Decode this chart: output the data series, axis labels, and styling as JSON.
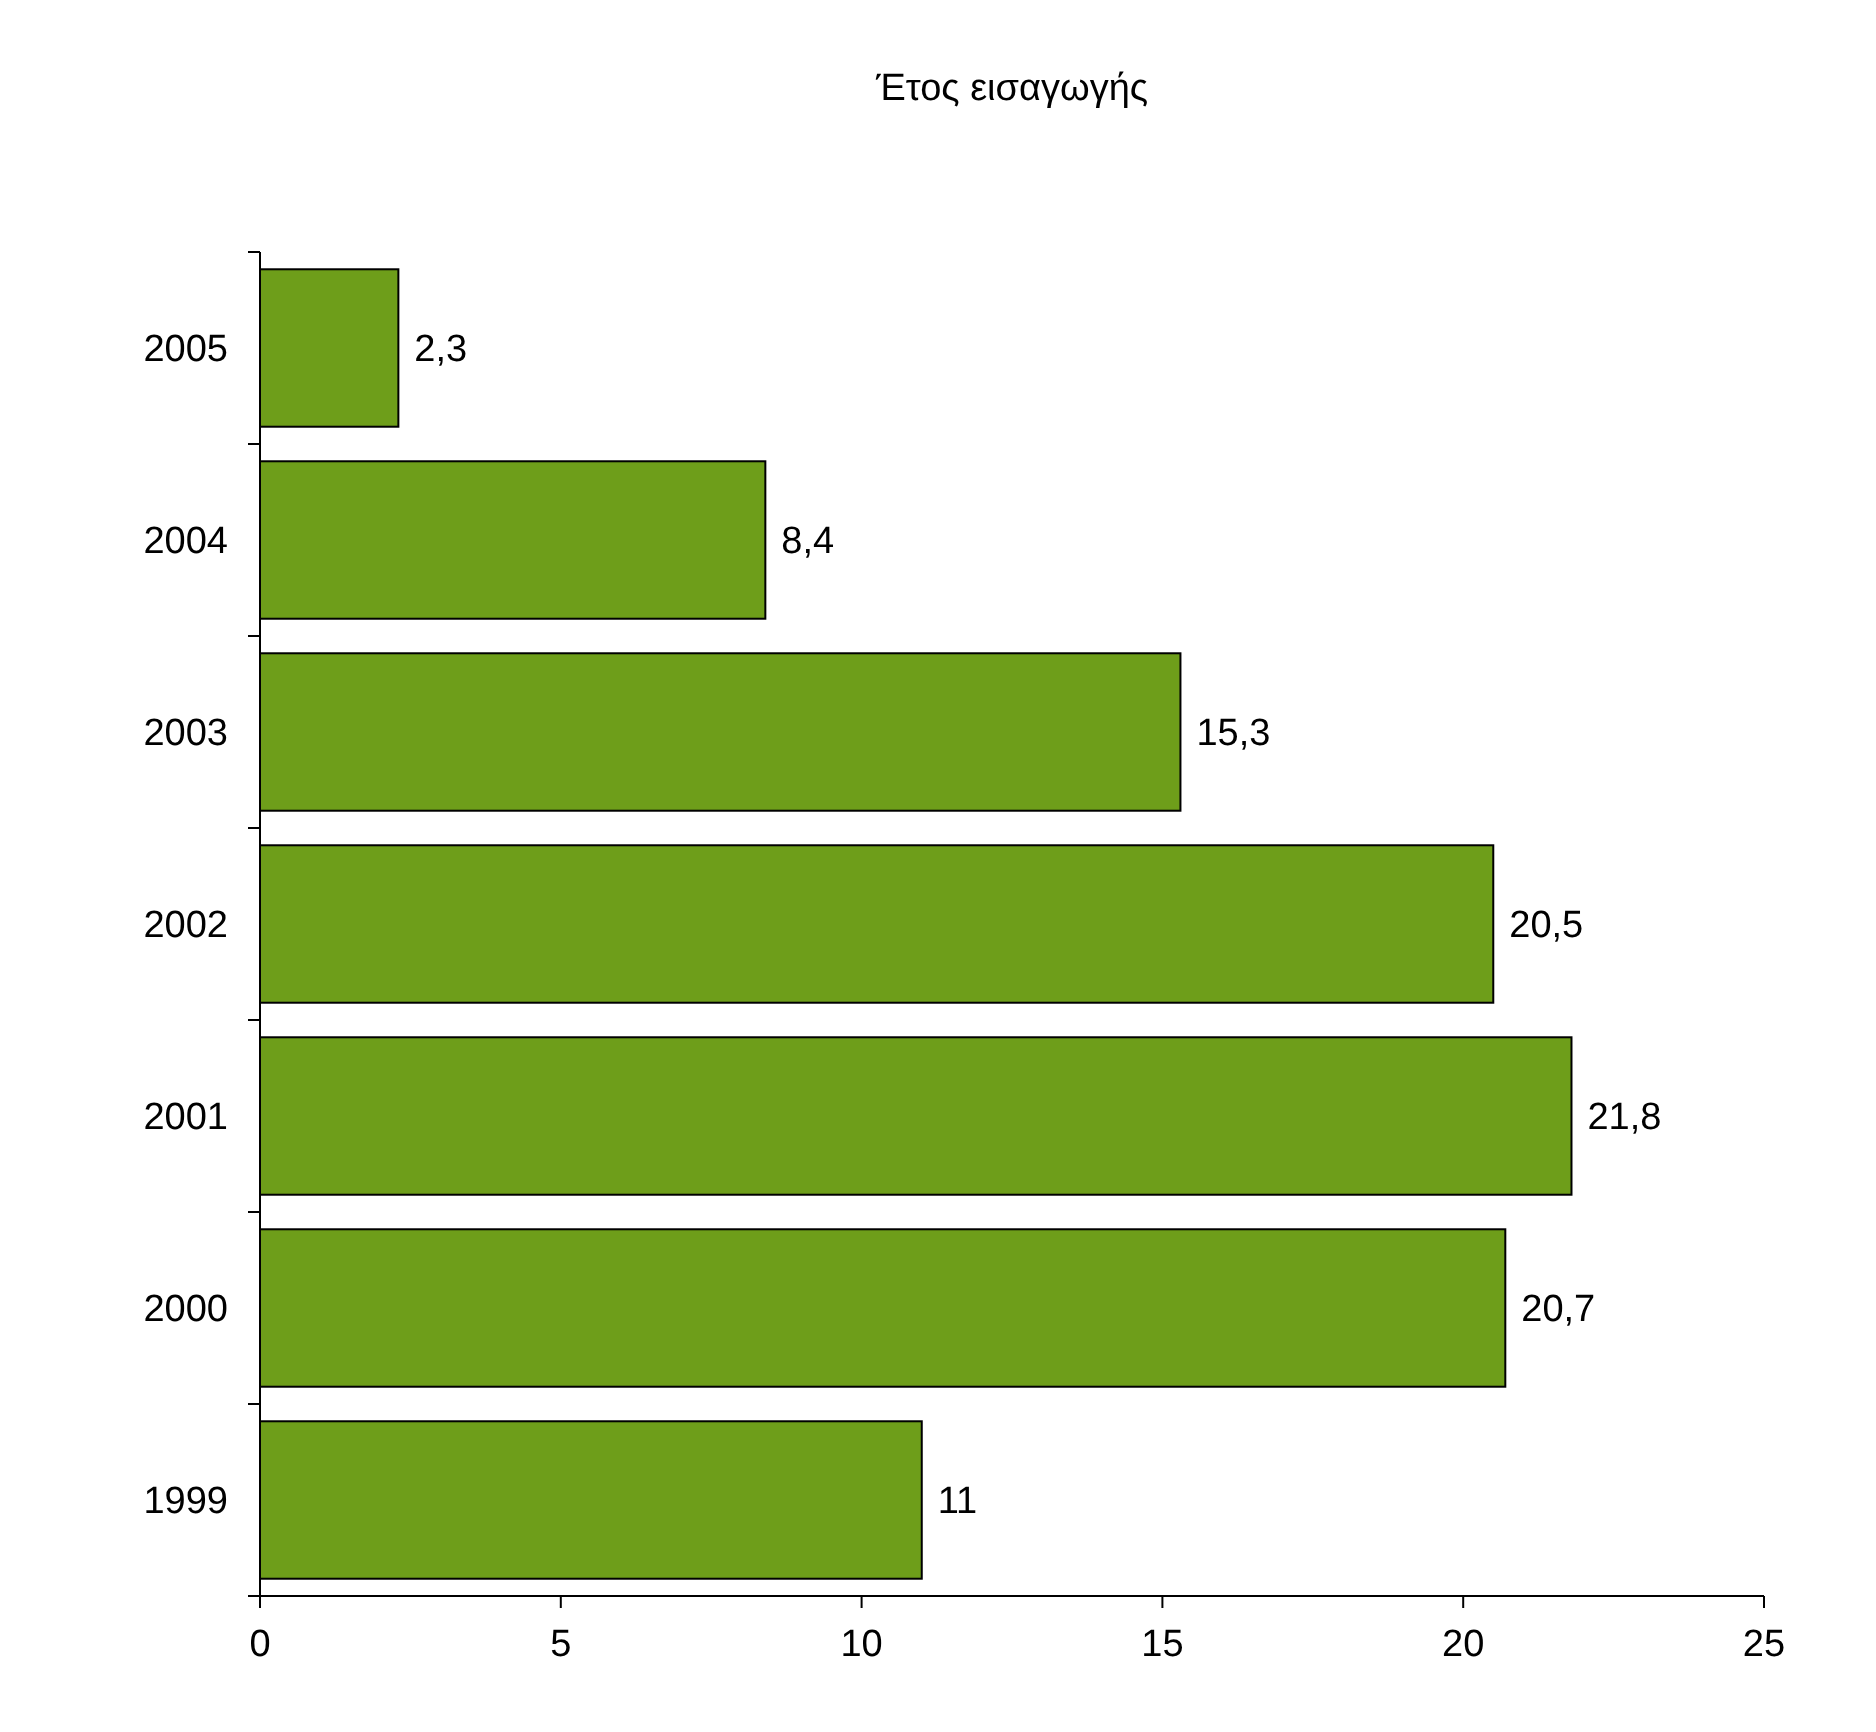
{
  "chart_data": {
    "type": "bar",
    "orientation": "horizontal",
    "title": "Έτος εισαγωγής",
    "categories": [
      "2005",
      "2004",
      "2003",
      "2002",
      "2001",
      "2000",
      "1999"
    ],
    "values": [
      2.3,
      8.4,
      15.3,
      20.5,
      21.8,
      20.7,
      11
    ],
    "value_labels": [
      "2,3",
      "8,4",
      "15,3",
      "20,5",
      "21,8",
      "20,7",
      "11"
    ],
    "color": "#6e9e1a",
    "xlim": [
      0,
      25
    ],
    "xticks": [
      0,
      5,
      10,
      15,
      20,
      25
    ]
  }
}
